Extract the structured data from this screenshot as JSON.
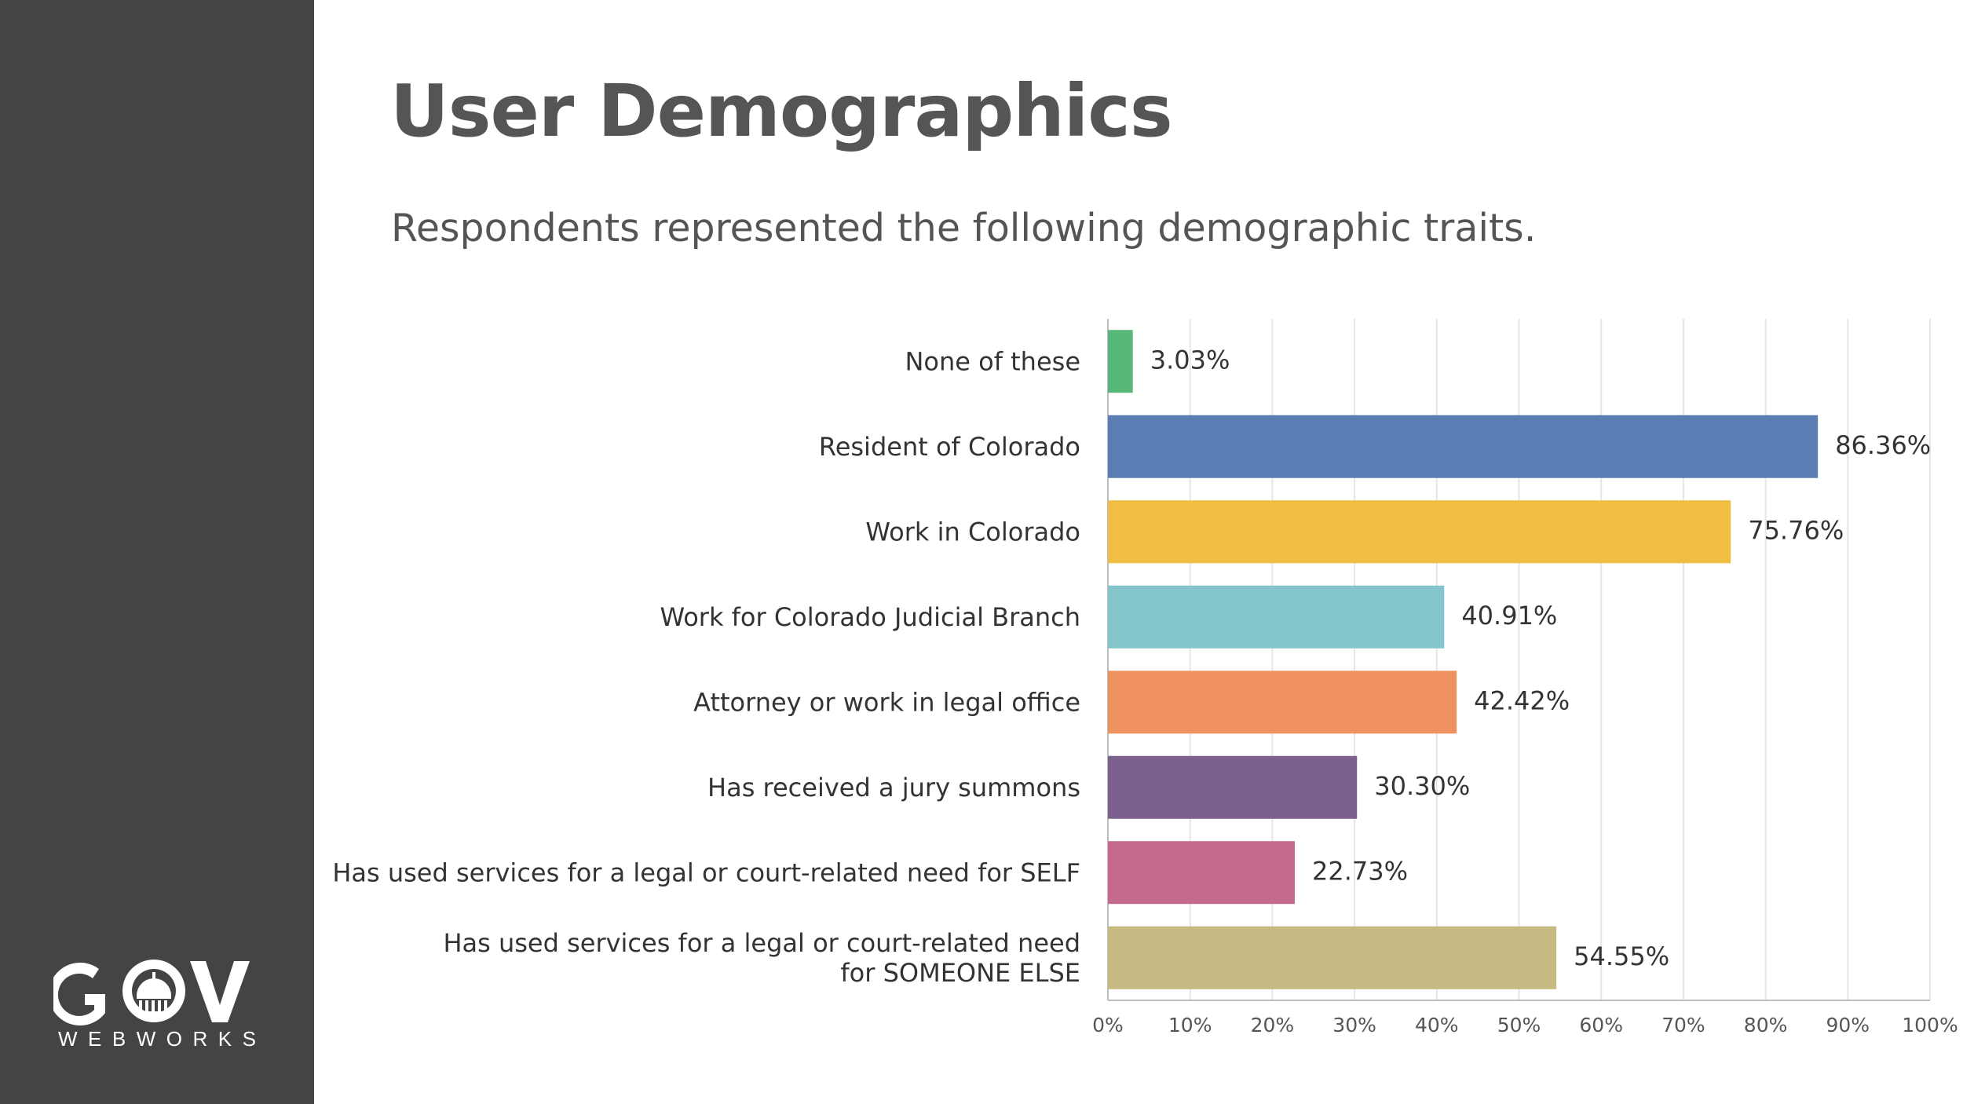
{
  "slide": {
    "title": "User Demographics",
    "subtitle": "Respondents represented the following demographic traits."
  },
  "brand": {
    "logo_text": "GOV WEBWORKS",
    "logo_icon": "capitol-dome-icon"
  },
  "colors": {
    "sidebar": "#444444",
    "title_text": "#555555",
    "label_text": "#333333",
    "axis_text": "#555555",
    "grid": "#e6e6e6",
    "axis": "#bdbdbd"
  },
  "chart_data": {
    "type": "bar",
    "orientation": "horizontal",
    "categories": [
      "None of these",
      "Resident of Colorado",
      "Work in Colorado",
      "Work for Colorado Judicial Branch",
      "Attorney or work in legal office",
      "Has received a jury summons",
      "Has used services for a legal or court-related need for SELF",
      [
        "Has used services for a legal or court-related need",
        "for SOMEONE ELSE"
      ]
    ],
    "values": [
      3.03,
      86.36,
      75.76,
      40.91,
      42.42,
      30.3,
      22.73,
      54.55
    ],
    "value_labels": [
      "3.03%",
      "86.36%",
      "75.76%",
      "40.91%",
      "42.42%",
      "30.30%",
      "22.73%",
      "54.55%"
    ],
    "bar_colors": [
      "#58b87a",
      "#5a7db4",
      "#f0be42",
      "#83c5cb",
      "#ef9260",
      "#7b5f8d",
      "#c5698f",
      "#c6b982"
    ],
    "xlim": [
      0,
      100
    ],
    "xticks": [
      0,
      10,
      20,
      30,
      40,
      50,
      60,
      70,
      80,
      90,
      100
    ],
    "xtick_labels": [
      "0%",
      "10%",
      "20%",
      "30%",
      "40%",
      "50%",
      "60%",
      "70%",
      "80%",
      "90%",
      "100%"
    ],
    "grid": true,
    "legend": "none"
  }
}
